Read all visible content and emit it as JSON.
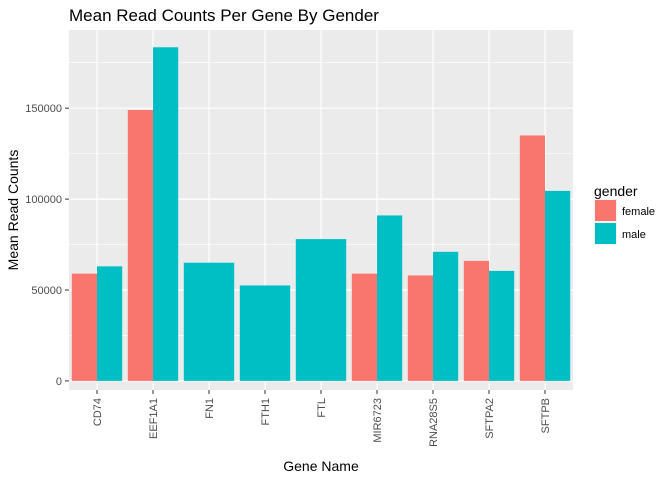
{
  "chart_data": {
    "type": "bar",
    "title": "Mean Read Counts Per Gene By Gender",
    "xlabel": "Gene Name",
    "ylabel": "Mean Read Counts",
    "categories": [
      "CD74",
      "EEF1A1",
      "FN1",
      "FTH1",
      "FTL",
      "MIR6723",
      "RNA28S5",
      "SFTPA2",
      "SFTPB"
    ],
    "series": [
      {
        "name": "female",
        "color": "#F8766D",
        "values": [
          59000,
          149000,
          null,
          null,
          null,
          59000,
          58000,
          66000,
          135000
        ]
      },
      {
        "name": "male",
        "color": "#00BFC4",
        "values": [
          63000,
          183500,
          65000,
          52500,
          78000,
          91000,
          71000,
          60500,
          104500
        ]
      }
    ],
    "ylim": [
      -5000,
      193000
    ],
    "yticks": [
      0,
      50000,
      100000,
      150000
    ],
    "ytick_labels": [
      "0",
      "50000",
      "100000",
      "150000"
    ],
    "legend": {
      "title": "gender",
      "position": "right",
      "entries": [
        "female",
        "male"
      ]
    },
    "grid": true,
    "panel_background": "#EBEBEB",
    "grid_color": "#FFFFFF"
  }
}
